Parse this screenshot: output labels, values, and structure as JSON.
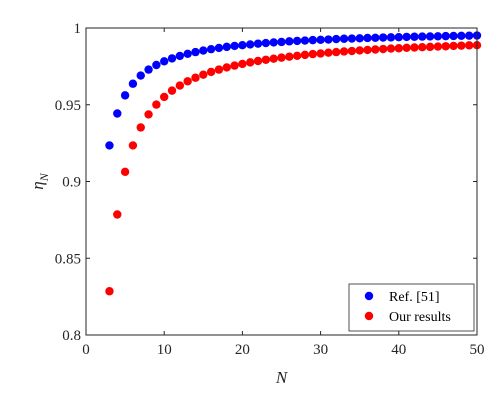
{
  "chart_data": {
    "type": "scatter",
    "title": "",
    "xlabel": "N",
    "ylabel": "η",
    "ylabel_subscript": "N",
    "xlim": [
      0,
      50
    ],
    "ylim": [
      0.8,
      1
    ],
    "xticks": [
      "0",
      "10",
      "20",
      "30",
      "40",
      "50"
    ],
    "yticks": [
      "0.8",
      "0.85",
      "0.9",
      "0.95",
      "1"
    ],
    "grid": false,
    "legend_position": "bottom-right",
    "series": [
      {
        "name": "Ref. [51]",
        "color": "#0000ff",
        "x": [
          3,
          4,
          5,
          6,
          7,
          8,
          9,
          10,
          11,
          12,
          13,
          14,
          15,
          16,
          17,
          18,
          19,
          20,
          21,
          22,
          23,
          24,
          25,
          26,
          27,
          28,
          29,
          30,
          31,
          32,
          33,
          34,
          35,
          36,
          37,
          38,
          39,
          40,
          41,
          42,
          43,
          44,
          45,
          46,
          47,
          48,
          49,
          50
        ],
        "y": [
          0.9235,
          0.9443,
          0.9561,
          0.9637,
          0.969,
          0.9729,
          0.9759,
          0.9783,
          0.9802,
          0.9818,
          0.9832,
          0.9843,
          0.9853,
          0.9862,
          0.987,
          0.9877,
          0.9883,
          0.9888,
          0.9893,
          0.9898,
          0.9902,
          0.9906,
          0.9909,
          0.9913,
          0.9916,
          0.9918,
          0.9921,
          0.9923,
          0.9925,
          0.9928,
          0.993,
          0.9931,
          0.9933,
          0.9935,
          0.9936,
          0.9938,
          0.9939,
          0.994,
          0.9942,
          0.9943,
          0.9944,
          0.9945,
          0.9946,
          0.9947,
          0.9948,
          0.9949,
          0.995,
          0.9951
        ]
      },
      {
        "name": "Our results",
        "color": "#ff0000",
        "x": [
          3,
          4,
          5,
          6,
          7,
          8,
          9,
          10,
          11,
          12,
          13,
          14,
          15,
          16,
          17,
          18,
          19,
          20,
          21,
          22,
          23,
          24,
          25,
          26,
          27,
          28,
          29,
          30,
          31,
          32,
          33,
          34,
          35,
          36,
          37,
          38,
          39,
          40,
          41,
          42,
          43,
          44,
          45,
          46,
          47,
          48,
          49,
          50
        ],
        "y": [
          0.8285,
          0.8785,
          0.9063,
          0.9235,
          0.9352,
          0.9437,
          0.9501,
          0.9551,
          0.9592,
          0.9625,
          0.9653,
          0.9676,
          0.9696,
          0.9714,
          0.9729,
          0.9743,
          0.9755,
          0.9766,
          0.9776,
          0.9785,
          0.9793,
          0.98,
          0.9807,
          0.9813,
          0.9819,
          0.9825,
          0.983,
          0.9834,
          0.9839,
          0.9843,
          0.9847,
          0.985,
          0.9854,
          0.9857,
          0.986,
          0.9863,
          0.9866,
          0.9868,
          0.9871,
          0.9873,
          0.9875,
          0.9877,
          0.9879,
          0.9881,
          0.9883,
          0.9885,
          0.9887,
          0.9888
        ]
      }
    ]
  }
}
